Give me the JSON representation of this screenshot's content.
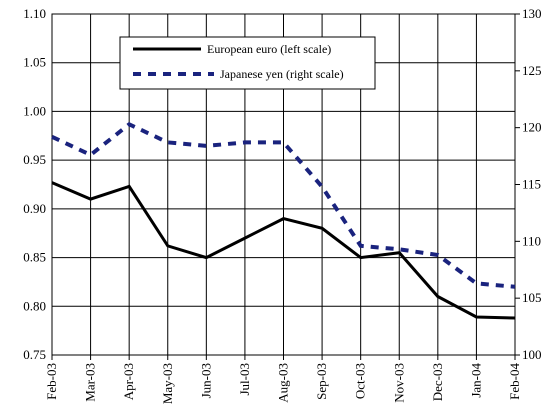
{
  "chart_data": {
    "type": "line",
    "categories": [
      "Feb-03",
      "Mar-03",
      "Apr-03",
      "May-03",
      "Jun-03",
      "Jul-03",
      "Aug-03",
      "Sep-03",
      "Oct-03",
      "Nov-03",
      "Dec-03",
      "Jan-04",
      "Feb-04"
    ],
    "left_axis": {
      "ylim": [
        0.75,
        1.1
      ],
      "ticks": [
        "0.75",
        "0.80",
        "0.85",
        "0.90",
        "0.95",
        "1.00",
        "1.05",
        "1.10"
      ]
    },
    "right_axis": {
      "ylim": [
        100,
        130
      ],
      "ticks": [
        "100",
        "105",
        "110",
        "115",
        "120",
        "125",
        "130"
      ]
    },
    "grid": true,
    "legend_position": "top-center",
    "series": [
      {
        "name": "European euro (left scale)",
        "axis": "left",
        "style": "solid",
        "color": "#000000",
        "values": [
          0.927,
          0.91,
          0.923,
          0.862,
          0.85,
          0.87,
          0.89,
          0.88,
          0.85,
          0.855,
          0.81,
          0.789,
          0.788
        ]
      },
      {
        "name": "Japanese yen (right scale)",
        "axis": "right",
        "style": "dashed",
        "color": "#1a237e",
        "values": [
          119.2,
          117.6,
          120.3,
          118.7,
          118.4,
          118.7,
          118.7,
          114.8,
          109.6,
          109.3,
          108.8,
          106.3,
          106.0
        ]
      }
    ]
  }
}
